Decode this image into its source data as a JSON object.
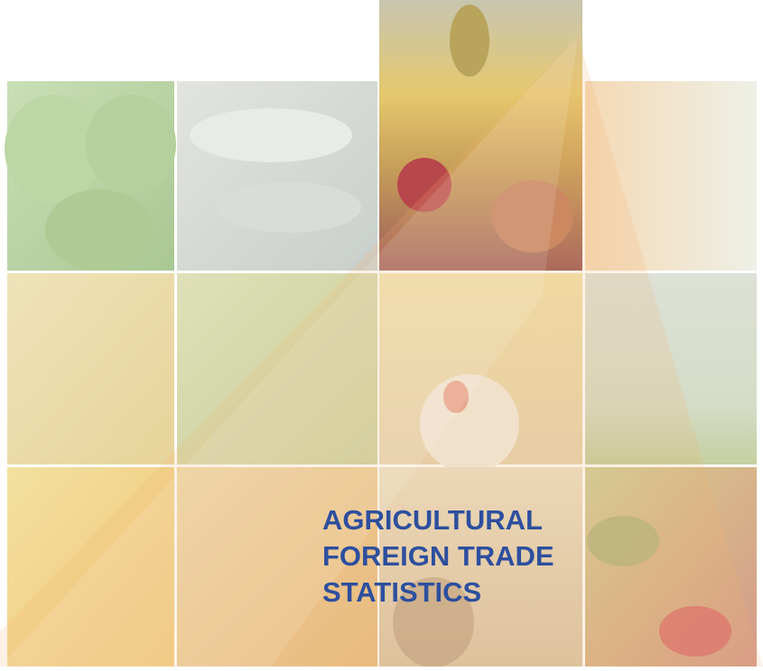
{
  "cover": {
    "title_lines": [
      "AGRICULTURAL",
      "FOREIGN TRADE",
      "STATISTICS"
    ]
  }
}
